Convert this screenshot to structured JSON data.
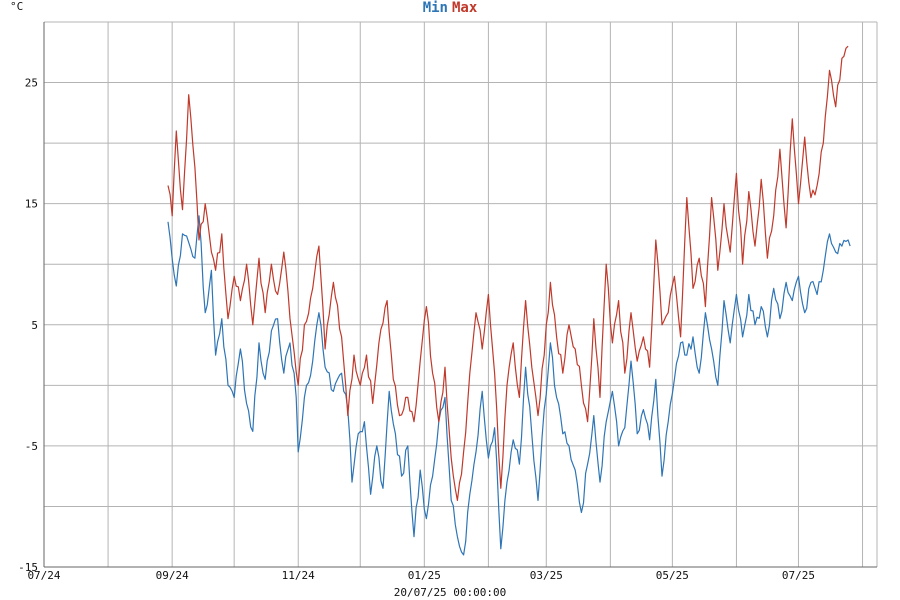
{
  "chart_data": {
    "type": "line",
    "unit_label": "°C",
    "timestamp": "20/07/25 00:00:00",
    "x_range": [
      "2024-07-01",
      "2025-08-08"
    ],
    "ylim": [
      -15,
      30
    ],
    "y_ticks": [
      -15,
      -5,
      5,
      15,
      25
    ],
    "x_tick_labels": [
      "07/24",
      "09/24",
      "11/24",
      "01/25",
      "03/25",
      "05/25",
      "07/25"
    ],
    "x_tick_dates": [
      "2024-07-01",
      "2024-09-01",
      "2024-11-01",
      "2025-01-01",
      "2025-03-01",
      "2025-05-01",
      "2025-07-01"
    ],
    "grid": true,
    "legend_position": "top-center",
    "series": [
      {
        "name": "Min",
        "color": "#2e75b6",
        "points": [
          [
            "2024-08-30",
            13.5
          ],
          [
            "2024-09-03",
            8.2
          ],
          [
            "2024-09-06",
            12.5
          ],
          [
            "2024-09-09",
            11.8
          ],
          [
            "2024-09-12",
            10.5
          ],
          [
            "2024-09-14",
            14.0
          ],
          [
            "2024-09-17",
            6.0
          ],
          [
            "2024-09-20",
            9.5
          ],
          [
            "2024-09-22",
            2.5
          ],
          [
            "2024-09-25",
            5.5
          ],
          [
            "2024-09-28",
            0.0
          ],
          [
            "2024-10-01",
            -1.0
          ],
          [
            "2024-10-04",
            3.0
          ],
          [
            "2024-10-07",
            -1.5
          ],
          [
            "2024-10-10",
            -3.8
          ],
          [
            "2024-10-13",
            3.5
          ],
          [
            "2024-10-16",
            0.5
          ],
          [
            "2024-10-19",
            4.5
          ],
          [
            "2024-10-22",
            5.5
          ],
          [
            "2024-10-25",
            1.0
          ],
          [
            "2024-10-28",
            3.5
          ],
          [
            "2024-10-31",
            -1.0
          ],
          [
            "2024-11-01",
            -5.5
          ],
          [
            "2024-11-04",
            -1.0
          ],
          [
            "2024-11-08",
            2.0
          ],
          [
            "2024-11-11",
            6.0
          ],
          [
            "2024-11-14",
            1.5
          ],
          [
            "2024-11-18",
            -0.5
          ],
          [
            "2024-11-22",
            1.0
          ],
          [
            "2024-11-25",
            -2.0
          ],
          [
            "2024-11-27",
            -8.0
          ],
          [
            "2024-11-30",
            -4.0
          ],
          [
            "2024-12-03",
            -3.0
          ],
          [
            "2024-12-06",
            -9.0
          ],
          [
            "2024-12-09",
            -5.0
          ],
          [
            "2024-12-12",
            -8.5
          ],
          [
            "2024-12-15",
            -0.5
          ],
          [
            "2024-12-18",
            -4.0
          ],
          [
            "2024-12-21",
            -7.5
          ],
          [
            "2024-12-24",
            -5.0
          ],
          [
            "2024-12-27",
            -12.5
          ],
          [
            "2024-12-30",
            -7.0
          ],
          [
            "2025-01-02",
            -11.0
          ],
          [
            "2025-01-05",
            -7.5
          ],
          [
            "2025-01-08",
            -3.0
          ],
          [
            "2025-01-11",
            -1.0
          ],
          [
            "2025-01-14",
            -9.5
          ],
          [
            "2025-01-17",
            -12.5
          ],
          [
            "2025-01-20",
            -14.0
          ],
          [
            "2025-01-23",
            -9.0
          ],
          [
            "2025-01-26",
            -5.5
          ],
          [
            "2025-01-29",
            -0.5
          ],
          [
            "2025-02-01",
            -6.0
          ],
          [
            "2025-02-04",
            -3.5
          ],
          [
            "2025-02-07",
            -13.5
          ],
          [
            "2025-02-10",
            -8.0
          ],
          [
            "2025-02-13",
            -4.5
          ],
          [
            "2025-02-16",
            -6.5
          ],
          [
            "2025-02-19",
            1.5
          ],
          [
            "2025-02-22",
            -4.0
          ],
          [
            "2025-02-25",
            -9.5
          ],
          [
            "2025-02-28",
            -2.0
          ],
          [
            "2025-03-03",
            3.5
          ],
          [
            "2025-03-06",
            -1.0
          ],
          [
            "2025-03-09",
            -4.0
          ],
          [
            "2025-03-12",
            -5.0
          ],
          [
            "2025-03-15",
            -7.0
          ],
          [
            "2025-03-18",
            -10.5
          ],
          [
            "2025-03-21",
            -6.5
          ],
          [
            "2025-03-24",
            -2.5
          ],
          [
            "2025-03-27",
            -8.0
          ],
          [
            "2025-03-30",
            -3.0
          ],
          [
            "2025-04-02",
            -0.5
          ],
          [
            "2025-04-05",
            -5.0
          ],
          [
            "2025-04-08",
            -3.5
          ],
          [
            "2025-04-11",
            2.0
          ],
          [
            "2025-04-14",
            -4.0
          ],
          [
            "2025-04-17",
            -2.0
          ],
          [
            "2025-04-20",
            -4.5
          ],
          [
            "2025-04-23",
            0.5
          ],
          [
            "2025-04-26",
            -7.5
          ],
          [
            "2025-04-29",
            -3.0
          ],
          [
            "2025-05-02",
            0.5
          ],
          [
            "2025-05-05",
            3.5
          ],
          [
            "2025-05-08",
            2.5
          ],
          [
            "2025-05-11",
            4.0
          ],
          [
            "2025-05-14",
            1.0
          ],
          [
            "2025-05-17",
            6.0
          ],
          [
            "2025-05-20",
            3.0
          ],
          [
            "2025-05-23",
            0.0
          ],
          [
            "2025-05-26",
            7.0
          ],
          [
            "2025-05-29",
            3.5
          ],
          [
            "2025-06-01",
            7.5
          ],
          [
            "2025-06-04",
            4.0
          ],
          [
            "2025-06-07",
            7.5
          ],
          [
            "2025-06-10",
            5.0
          ],
          [
            "2025-06-13",
            6.5
          ],
          [
            "2025-06-16",
            4.0
          ],
          [
            "2025-06-19",
            8.0
          ],
          [
            "2025-06-22",
            5.5
          ],
          [
            "2025-06-25",
            8.5
          ],
          [
            "2025-06-28",
            7.0
          ],
          [
            "2025-07-01",
            9.0
          ],
          [
            "2025-07-04",
            6.0
          ],
          [
            "2025-07-07",
            8.5
          ],
          [
            "2025-07-10",
            7.5
          ],
          [
            "2025-07-13",
            9.5
          ],
          [
            "2025-07-16",
            12.5
          ],
          [
            "2025-07-19",
            11.0
          ],
          [
            "2025-07-22",
            11.5
          ],
          [
            "2025-07-25",
            12.0
          ],
          [
            "2025-07-26",
            11.5
          ]
        ]
      },
      {
        "name": "Max",
        "color": "#c0392b",
        "points": [
          [
            "2024-08-30",
            16.5
          ],
          [
            "2024-09-01",
            14.0
          ],
          [
            "2024-09-03",
            21.0
          ],
          [
            "2024-09-06",
            14.5
          ],
          [
            "2024-09-09",
            24.0
          ],
          [
            "2024-09-12",
            18.0
          ],
          [
            "2024-09-14",
            12.0
          ],
          [
            "2024-09-17",
            15.0
          ],
          [
            "2024-09-20",
            11.0
          ],
          [
            "2024-09-22",
            9.5
          ],
          [
            "2024-09-25",
            12.5
          ],
          [
            "2024-09-28",
            5.5
          ],
          [
            "2024-10-01",
            9.0
          ],
          [
            "2024-10-04",
            7.0
          ],
          [
            "2024-10-07",
            10.0
          ],
          [
            "2024-10-10",
            5.0
          ],
          [
            "2024-10-13",
            10.5
          ],
          [
            "2024-10-16",
            6.0
          ],
          [
            "2024-10-19",
            10.0
          ],
          [
            "2024-10-22",
            7.5
          ],
          [
            "2024-10-25",
            11.0
          ],
          [
            "2024-10-28",
            5.5
          ],
          [
            "2024-11-01",
            0.0
          ],
          [
            "2024-11-04",
            5.0
          ],
          [
            "2024-11-08",
            8.0
          ],
          [
            "2024-11-11",
            11.5
          ],
          [
            "2024-11-14",
            3.0
          ],
          [
            "2024-11-18",
            8.5
          ],
          [
            "2024-11-22",
            4.0
          ],
          [
            "2024-11-25",
            -2.5
          ],
          [
            "2024-11-28",
            2.5
          ],
          [
            "2024-12-01",
            0.0
          ],
          [
            "2024-12-04",
            2.5
          ],
          [
            "2024-12-07",
            -1.5
          ],
          [
            "2024-12-10",
            3.5
          ],
          [
            "2024-12-14",
            7.0
          ],
          [
            "2024-12-17",
            0.5
          ],
          [
            "2024-12-20",
            -2.5
          ],
          [
            "2024-12-24",
            -1.0
          ],
          [
            "2024-12-27",
            -3.0
          ],
          [
            "2024-12-30",
            2.0
          ],
          [
            "2025-01-02",
            6.5
          ],
          [
            "2025-01-05",
            1.0
          ],
          [
            "2025-01-08",
            -3.0
          ],
          [
            "2025-01-11",
            1.5
          ],
          [
            "2025-01-14",
            -6.0
          ],
          [
            "2025-01-17",
            -9.5
          ],
          [
            "2025-01-20",
            -5.5
          ],
          [
            "2025-01-23",
            1.0
          ],
          [
            "2025-01-26",
            6.0
          ],
          [
            "2025-01-29",
            3.0
          ],
          [
            "2025-02-01",
            7.5
          ],
          [
            "2025-02-04",
            1.0
          ],
          [
            "2025-02-07",
            -8.5
          ],
          [
            "2025-02-10",
            0.0
          ],
          [
            "2025-02-13",
            3.5
          ],
          [
            "2025-02-16",
            -1.0
          ],
          [
            "2025-02-19",
            7.0
          ],
          [
            "2025-02-22",
            1.5
          ],
          [
            "2025-02-25",
            -2.5
          ],
          [
            "2025-02-28",
            2.5
          ],
          [
            "2025-03-03",
            8.5
          ],
          [
            "2025-03-06",
            4.0
          ],
          [
            "2025-03-09",
            1.0
          ],
          [
            "2025-03-12",
            5.0
          ],
          [
            "2025-03-15",
            3.0
          ],
          [
            "2025-03-18",
            0.0
          ],
          [
            "2025-03-21",
            -3.0
          ],
          [
            "2025-03-24",
            5.5
          ],
          [
            "2025-03-27",
            -1.0
          ],
          [
            "2025-03-30",
            10.0
          ],
          [
            "2025-04-02",
            3.5
          ],
          [
            "2025-04-05",
            7.0
          ],
          [
            "2025-04-08",
            1.0
          ],
          [
            "2025-04-11",
            6.0
          ],
          [
            "2025-04-14",
            2.0
          ],
          [
            "2025-04-17",
            4.0
          ],
          [
            "2025-04-20",
            1.5
          ],
          [
            "2025-04-23",
            12.0
          ],
          [
            "2025-04-26",
            5.0
          ],
          [
            "2025-04-29",
            6.0
          ],
          [
            "2025-05-02",
            9.0
          ],
          [
            "2025-05-05",
            4.0
          ],
          [
            "2025-05-08",
            15.5
          ],
          [
            "2025-05-11",
            8.0
          ],
          [
            "2025-05-14",
            10.5
          ],
          [
            "2025-05-17",
            6.5
          ],
          [
            "2025-05-20",
            15.5
          ],
          [
            "2025-05-23",
            9.5
          ],
          [
            "2025-05-26",
            15.0
          ],
          [
            "2025-05-29",
            11.0
          ],
          [
            "2025-06-01",
            17.5
          ],
          [
            "2025-06-04",
            10.0
          ],
          [
            "2025-06-07",
            16.0
          ],
          [
            "2025-06-10",
            11.5
          ],
          [
            "2025-06-13",
            17.0
          ],
          [
            "2025-06-16",
            10.5
          ],
          [
            "2025-06-19",
            14.0
          ],
          [
            "2025-06-22",
            19.5
          ],
          [
            "2025-06-25",
            13.0
          ],
          [
            "2025-06-28",
            22.0
          ],
          [
            "2025-07-01",
            15.0
          ],
          [
            "2025-07-04",
            20.5
          ],
          [
            "2025-07-07",
            15.5
          ],
          [
            "2025-07-10",
            16.5
          ],
          [
            "2025-07-13",
            20.0
          ],
          [
            "2025-07-16",
            26.0
          ],
          [
            "2025-07-19",
            23.0
          ],
          [
            "2025-07-22",
            27.0
          ],
          [
            "2025-07-25",
            28.0
          ]
        ]
      }
    ]
  }
}
